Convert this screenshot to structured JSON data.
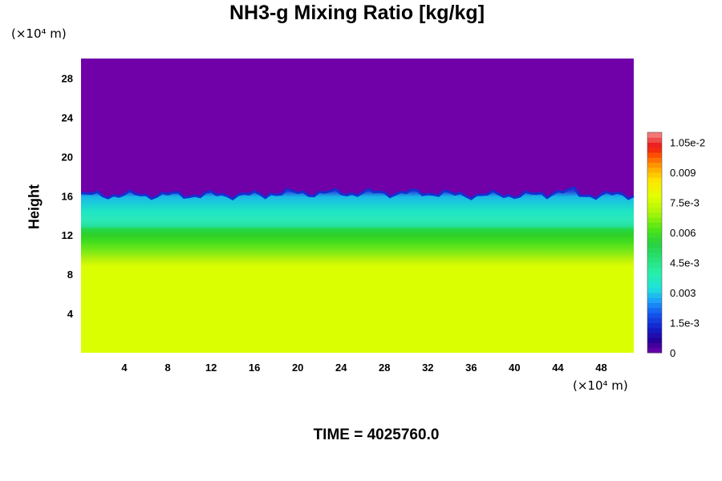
{
  "chart_data": {
    "type": "heatmap",
    "title": "NH3-g Mixing Ratio [kg/kg]",
    "ylabel": "Height",
    "yunit": "(×10⁴ m)",
    "xunit": "(×10⁴ m)",
    "footer": "TIME = 4025760.0",
    "xlim": [
      0,
      51
    ],
    "ylim": [
      0,
      30
    ],
    "x_ticks": [
      "4",
      "8",
      "12",
      "16",
      "20",
      "24",
      "28",
      "32",
      "36",
      "40",
      "44",
      "48"
    ],
    "y_ticks": [
      "4",
      "8",
      "12",
      "16",
      "20",
      "24",
      "28"
    ],
    "colorbar": {
      "range": [
        0,
        0.011
      ],
      "tick_labels": [
        "0",
        "1.5e-3",
        "0.003",
        "4.5e-3",
        "0.006",
        "7.5e-3",
        "0.009",
        "1.05e-2"
      ],
      "tick_values": [
        0,
        0.0015,
        0.003,
        0.0045,
        0.006,
        0.0075,
        0.009,
        0.0105
      ]
    },
    "vertical_profile": [
      {
        "height": 0,
        "value": 0.0078
      },
      {
        "height": 9.5,
        "value": 0.0078
      },
      {
        "height": 11,
        "value": 0.0062
      },
      {
        "height": 12.5,
        "value": 0.0052
      },
      {
        "height": 14,
        "value": 0.004
      },
      {
        "height": 15.3,
        "value": 0.0035
      },
      {
        "height": 16,
        "value": 0.0005
      },
      {
        "height": 30,
        "value": 0.0
      }
    ],
    "colors": {
      "top_layer": "#7000a8",
      "cloud_top": "#1430d0",
      "cyan_band": "#1de7c8",
      "green_band": "#22dc22",
      "lower_layer": "#daff00"
    }
  }
}
